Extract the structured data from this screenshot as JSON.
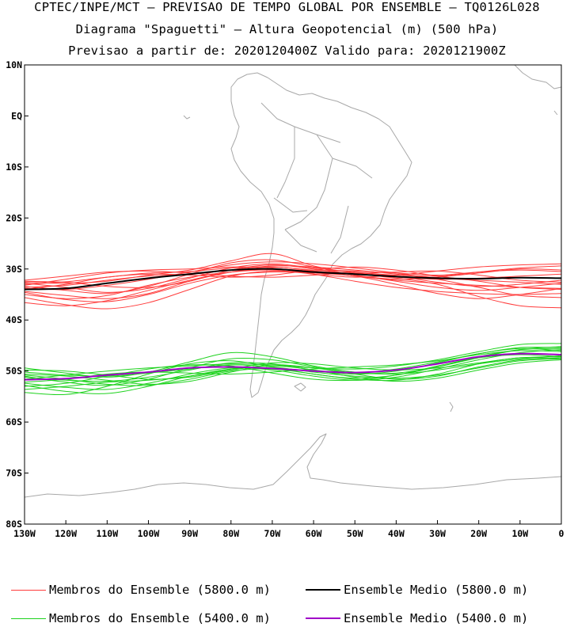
{
  "header": {
    "line1": "CPTEC/INPE/MCT – PREVISAO DE TEMPO GLOBAL POR ENSEMBLE – TQ0126L028",
    "line2": "Diagrama \"Spaguetti\" – Altura Geopotencial (m) (500 hPa)",
    "line3": "Previsao a partir de: 2020120400Z  Valido para: 2020121900Z"
  },
  "chart_data": {
    "type": "line",
    "title": "Diagrama \"Spaguetti\" – Altura Geopotencial (m) (500 hPa)",
    "xlabel": "",
    "ylabel": "",
    "xlim": [
      -130,
      0
    ],
    "ylim": [
      -80,
      10
    ],
    "x_ticks": [
      -130,
      -120,
      -110,
      -100,
      -90,
      -80,
      -70,
      -60,
      -50,
      -40,
      -30,
      -20,
      -10,
      0
    ],
    "x_tick_labels": [
      "130W",
      "120W",
      "110W",
      "100W",
      "90W",
      "80W",
      "70W",
      "60W",
      "50W",
      "40W",
      "30W",
      "20W",
      "10W",
      "0"
    ],
    "y_ticks": [
      10,
      0,
      -10,
      -20,
      -30,
      -40,
      -50,
      -60,
      -70,
      -80
    ],
    "y_tick_labels": [
      "10N",
      "EQ",
      "10S",
      "20S",
      "30S",
      "40S",
      "50S",
      "60S",
      "70S",
      "80S"
    ],
    "grid": false,
    "map_background": "coastlines (South America, Antarctica)",
    "legend_position": "bottom",
    "colors": {
      "member_5800": "#ff3b3b",
      "mean_5800": "#000000",
      "member_5400": "#1ed21e",
      "mean_5400": "#a000c8",
      "coast": "#a8a8a8"
    },
    "lon": [
      -130,
      -120,
      -110,
      -100,
      -90,
      -80,
      -70,
      -60,
      -50,
      -40,
      -30,
      -20,
      -10,
      0
    ],
    "series": [
      {
        "name": "Ensemble Medio (5800.0 m)",
        "kind": "mean",
        "level": 5800,
        "lat": [
          -34.0,
          -33.8,
          -32.8,
          -31.8,
          -31.0,
          -30.2,
          -30.0,
          -30.6,
          -31.0,
          -31.5,
          -31.8,
          -31.9,
          -31.7,
          -31.8
        ]
      },
      {
        "name": "Ensemble Medio (5400.0 m)",
        "kind": "mean",
        "level": 5400,
        "lat": [
          -51.7,
          -51.5,
          -50.8,
          -50.2,
          -49.4,
          -49.2,
          -49.5,
          -50.0,
          -50.3,
          -49.8,
          -48.6,
          -47.2,
          -46.6,
          -46.8
        ]
      },
      {
        "level": 5800,
        "kind": "member",
        "lat": [
          -33.0,
          -32.5,
          -31.6,
          -30.8,
          -30.5,
          -29.8,
          -29.6,
          -30.2,
          -30.4,
          -30.8,
          -31.2,
          -30.6,
          -30.2,
          -30.5
        ]
      },
      {
        "level": 5800,
        "kind": "member",
        "lat": [
          -32.6,
          -32.8,
          -32.4,
          -31.2,
          -30.2,
          -28.4,
          -27.0,
          -29.4,
          -30.8,
          -31.6,
          -32.0,
          -31.8,
          -31.4,
          -31.0
        ]
      },
      {
        "level": 5800,
        "kind": "member",
        "lat": [
          -34.4,
          -35.2,
          -35.8,
          -34.8,
          -32.4,
          -30.6,
          -29.6,
          -30.4,
          -31.4,
          -32.2,
          -32.8,
          -33.2,
          -33.6,
          -33.8
        ]
      },
      {
        "level": 5800,
        "kind": "member",
        "lat": [
          -35.6,
          -37.0,
          -37.8,
          -36.6,
          -34.0,
          -31.4,
          -30.4,
          -30.8,
          -31.4,
          -33.0,
          -34.8,
          -35.8,
          -35.0,
          -33.8
        ]
      },
      {
        "level": 5800,
        "kind": "member",
        "lat": [
          -33.2,
          -32.0,
          -30.8,
          -30.2,
          -30.0,
          -29.6,
          -29.8,
          -31.0,
          -32.4,
          -33.6,
          -34.4,
          -34.8,
          -35.0,
          -34.8
        ]
      },
      {
        "level": 5800,
        "kind": "member",
        "lat": [
          -32.8,
          -33.6,
          -34.6,
          -33.8,
          -31.8,
          -29.8,
          -29.0,
          -29.8,
          -30.6,
          -31.2,
          -31.4,
          -30.6,
          -29.8,
          -29.4
        ]
      },
      {
        "level": 5800,
        "kind": "member",
        "lat": [
          -34.0,
          -33.0,
          -31.6,
          -31.0,
          -31.2,
          -31.6,
          -31.2,
          -30.2,
          -29.6,
          -30.2,
          -31.4,
          -32.4,
          -33.6,
          -34.0
        ]
      },
      {
        "level": 5800,
        "kind": "member",
        "lat": [
          -33.4,
          -34.2,
          -34.8,
          -33.4,
          -31.0,
          -28.8,
          -28.2,
          -29.6,
          -31.2,
          -32.0,
          -31.6,
          -30.8,
          -30.0,
          -30.2
        ]
      },
      {
        "level": 5800,
        "kind": "member",
        "lat": [
          -36.6,
          -37.2,
          -36.2,
          -34.2,
          -32.2,
          -30.6,
          -30.0,
          -30.4,
          -30.8,
          -30.6,
          -30.4,
          -31.2,
          -32.2,
          -32.6
        ]
      },
      {
        "level": 5800,
        "kind": "member",
        "lat": [
          -32.2,
          -31.4,
          -30.6,
          -30.4,
          -30.8,
          -31.4,
          -31.6,
          -31.2,
          -30.8,
          -31.4,
          -32.6,
          -33.4,
          -33.0,
          -32.2
        ]
      },
      {
        "level": 5800,
        "kind": "member",
        "lat": [
          -33.8,
          -34.0,
          -33.2,
          -32.0,
          -30.6,
          -29.2,
          -28.6,
          -29.0,
          -29.8,
          -30.8,
          -32.0,
          -33.6,
          -35.2,
          -35.6
        ]
      },
      {
        "level": 5800,
        "kind": "member",
        "lat": [
          -35.0,
          -35.8,
          -35.2,
          -33.2,
          -31.6,
          -30.6,
          -30.2,
          -31.0,
          -31.6,
          -31.2,
          -30.4,
          -29.6,
          -29.2,
          -29.0
        ]
      },
      {
        "level": 5800,
        "kind": "member",
        "lat": [
          -32.4,
          -32.6,
          -33.4,
          -33.6,
          -32.4,
          -30.2,
          -29.2,
          -30.0,
          -31.2,
          -32.4,
          -33.6,
          -34.2,
          -33.6,
          -32.8
        ]
      },
      {
        "level": 5800,
        "kind": "member",
        "lat": [
          -34.6,
          -36.0,
          -36.4,
          -35.0,
          -32.8,
          -31.2,
          -30.6,
          -30.8,
          -31.0,
          -31.8,
          -33.0,
          -35.4,
          -37.2,
          -37.6
        ]
      },
      {
        "level": 5800,
        "kind": "member",
        "lat": [
          -33.6,
          -33.2,
          -32.2,
          -31.4,
          -31.0,
          -30.2,
          -29.4,
          -29.6,
          -30.2,
          -31.0,
          -31.8,
          -32.2,
          -32.6,
          -33.0
        ]
      },
      {
        "level": 5400,
        "kind": "member",
        "lat": [
          -50.6,
          -51.0,
          -51.8,
          -52.6,
          -52.0,
          -50.2,
          -48.8,
          -49.4,
          -50.6,
          -51.6,
          -51.0,
          -49.2,
          -47.8,
          -47.4
        ]
      },
      {
        "level": 5400,
        "kind": "member",
        "lat": [
          -52.4,
          -53.2,
          -53.6,
          -52.4,
          -50.6,
          -49.4,
          -49.8,
          -51.0,
          -51.8,
          -51.2,
          -49.6,
          -47.8,
          -46.4,
          -45.8
        ]
      },
      {
        "level": 5400,
        "kind": "member",
        "lat": [
          -49.4,
          -50.4,
          -51.2,
          -50.2,
          -48.2,
          -46.4,
          -47.2,
          -49.0,
          -50.2,
          -50.6,
          -49.8,
          -48.6,
          -47.6,
          -47.0
        ]
      },
      {
        "level": 5400,
        "kind": "member",
        "lat": [
          -54.2,
          -54.6,
          -53.0,
          -50.6,
          -48.6,
          -48.0,
          -49.2,
          -50.6,
          -51.4,
          -50.8,
          -49.2,
          -47.4,
          -45.8,
          -45.2
        ]
      },
      {
        "level": 5400,
        "kind": "member",
        "lat": [
          -51.2,
          -51.8,
          -52.0,
          -51.2,
          -49.8,
          -48.4,
          -48.6,
          -49.8,
          -50.4,
          -49.6,
          -48.2,
          -46.6,
          -45.4,
          -45.4
        ]
      },
      {
        "level": 5400,
        "kind": "member",
        "lat": [
          -53.0,
          -52.4,
          -51.0,
          -49.6,
          -48.8,
          -49.0,
          -50.4,
          -51.6,
          -51.8,
          -50.8,
          -49.0,
          -47.4,
          -46.8,
          -47.2
        ]
      },
      {
        "level": 5400,
        "kind": "member",
        "lat": [
          -50.2,
          -50.8,
          -51.0,
          -50.4,
          -49.6,
          -48.8,
          -49.2,
          -50.2,
          -51.0,
          -51.4,
          -50.8,
          -49.4,
          -48.0,
          -47.6
        ]
      },
      {
        "level": 5400,
        "kind": "member",
        "lat": [
          -52.8,
          -54.0,
          -54.4,
          -53.0,
          -51.0,
          -49.6,
          -49.4,
          -50.0,
          -50.6,
          -50.0,
          -48.4,
          -46.6,
          -45.6,
          -46.0
        ]
      },
      {
        "level": 5400,
        "kind": "member",
        "lat": [
          -51.6,
          -50.8,
          -50.0,
          -49.4,
          -49.0,
          -48.6,
          -48.8,
          -49.4,
          -49.6,
          -49.0,
          -47.8,
          -46.2,
          -44.8,
          -44.6
        ]
      },
      {
        "level": 5400,
        "kind": "member",
        "lat": [
          -49.8,
          -50.0,
          -50.8,
          -51.6,
          -51.2,
          -49.8,
          -49.0,
          -49.8,
          -51.2,
          -52.0,
          -51.4,
          -49.8,
          -48.4,
          -47.8
        ]
      },
      {
        "level": 5400,
        "kind": "member",
        "lat": [
          -53.6,
          -53.0,
          -52.2,
          -51.8,
          -51.0,
          -49.6,
          -48.4,
          -48.6,
          -49.4,
          -49.8,
          -49.4,
          -48.4,
          -47.4,
          -47.2
        ]
      },
      {
        "level": 5400,
        "kind": "member",
        "lat": [
          -51.0,
          -52.2,
          -52.8,
          -51.6,
          -49.4,
          -47.6,
          -47.8,
          -49.2,
          -50.4,
          -50.4,
          -49.2,
          -47.2,
          -45.8,
          -45.6
        ]
      },
      {
        "level": 5400,
        "kind": "member",
        "lat": [
          -52.2,
          -51.6,
          -50.6,
          -50.2,
          -50.4,
          -50.6,
          -50.2,
          -49.6,
          -49.2,
          -48.8,
          -48.0,
          -46.8,
          -46.0,
          -46.2
        ]
      },
      {
        "level": 5400,
        "kind": "member",
        "lat": [
          -50.8,
          -51.6,
          -52.6,
          -52.8,
          -51.6,
          -50.0,
          -49.6,
          -50.6,
          -51.6,
          -51.8,
          -50.6,
          -48.6,
          -47.4,
          -47.6
        ]
      }
    ],
    "legend": [
      {
        "label": "Membros do Ensemble (5800.0 m)",
        "color": "#ff3b3b",
        "weight": "thin"
      },
      {
        "label": "Ensemble Medio (5800.0 m)",
        "color": "#000000",
        "weight": "thick"
      },
      {
        "label": "Membros do Ensemble (5400.0 m)",
        "color": "#1ed21e",
        "weight": "thin"
      },
      {
        "label": "Ensemble Medio (5400.0 m)",
        "color": "#a000c8",
        "weight": "thick"
      }
    ]
  }
}
